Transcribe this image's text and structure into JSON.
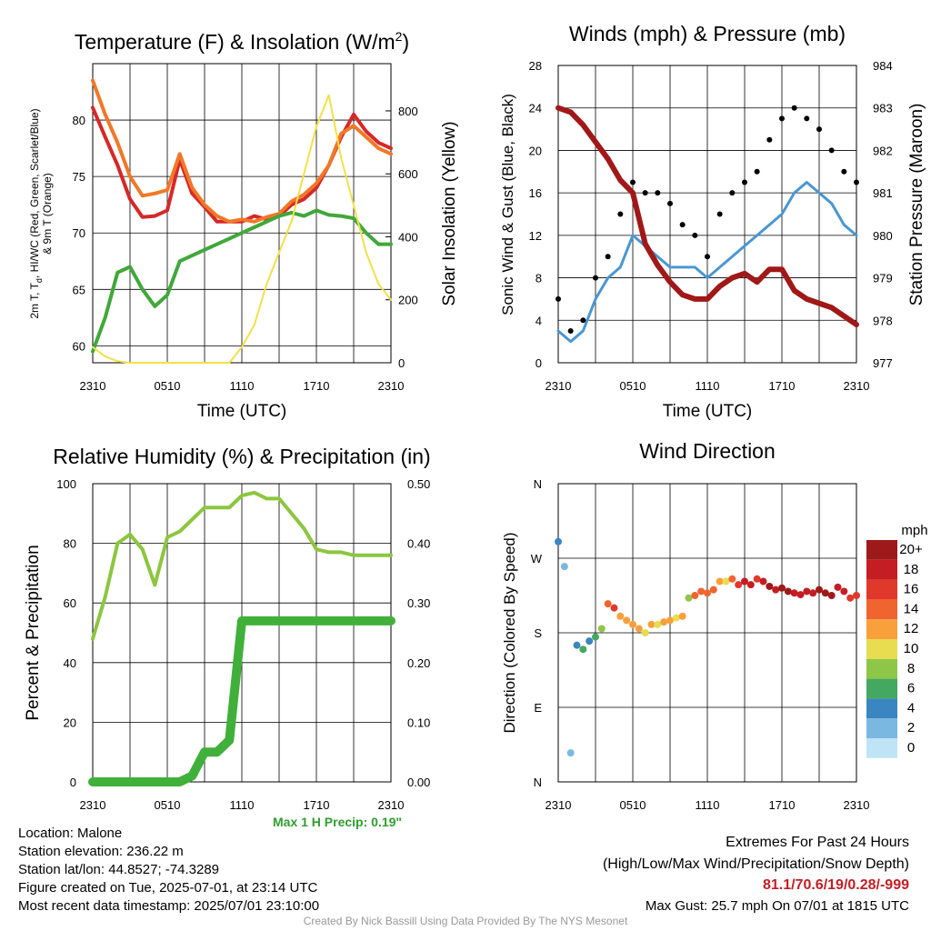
{
  "panels": {
    "temperature": {
      "title_main": "Temperature (F) & Insolation (W/m",
      "title_sup": "2",
      "title_close": ")",
      "ylabel_left_line1": "2m T, T",
      "ylabel_left_sub": "d",
      "ylabel_left_line1b": ", HI/WC (Red, Green, Scarlet/Blue)",
      "ylabel_left_line2": "& 9m T (Orange)",
      "ylabel_right": "Solar Insolation (Yellow)",
      "xlabel": "Time (UTC)"
    },
    "winds": {
      "title": "Winds (mph) & Pressure (mb)",
      "ylabel_left": "Sonic Wind & Gust (Blue, Black)",
      "ylabel_right": "Station Pressure (Maroon)",
      "xlabel": "Time (UTC)"
    },
    "humidity": {
      "title": "Relative Humidity (%) & Precipitation (in)",
      "ylabel_left": "Percent & Precipitation",
      "max_precip": "Max 1 H Precip: 0.19\""
    },
    "direction": {
      "title": "Wind Direction",
      "ylabel_left": "Direction (Colored By Speed)",
      "legend_title": "mph",
      "legend_labels": [
        "20+",
        "18",
        "16",
        "14",
        "12",
        "10",
        "8",
        "6",
        "4",
        "2",
        "0"
      ],
      "legend_colors": [
        "#9e1a1a",
        "#c41e23",
        "#e0382b",
        "#f06430",
        "#f8a03c",
        "#e8dc50",
        "#8ec648",
        "#44a860",
        "#3a86c0",
        "#7ab8e2",
        "#bfe4f6"
      ]
    }
  },
  "footer": {
    "location": "Location: Malone",
    "elevation": "Station elevation: 236.22 m",
    "latlon": "Station lat/lon: 44.8527; -74.3289",
    "created": "Figure created on Tue, 2025-07-01, at 23:14 UTC",
    "recent": "Most recent data timestamp: 2025/07/01 23:10:00",
    "extremes_title": "Extremes For Past 24 Hours",
    "extremes_sub": "(High/Low/Max Wind/Precipitation/Snow Depth)",
    "extremes_values": "81.1/70.6/19/0.28/-999",
    "max_gust": "Max Gust: 25.7 mph On 07/01 at 1815 UTC",
    "credit": "Created By Nick Bassill Using Data Provided By The NYS Mesonet"
  },
  "chart_data": [
    {
      "type": "line",
      "title": "Temperature (F) & Insolation (W/m2)",
      "xlabel": "Time (UTC)",
      "x_ticks": [
        "2310",
        "0510",
        "1110",
        "1710",
        "2310"
      ],
      "x": [
        0,
        1,
        2,
        3,
        4,
        5,
        6,
        7,
        8,
        9,
        10,
        11,
        12,
        13,
        14,
        15,
        16,
        17,
        18,
        19,
        20,
        21,
        22,
        23,
        24
      ],
      "ylim_left": [
        58.5,
        85
      ],
      "ylim_right": [
        0,
        950
      ],
      "yticks_left": [
        60,
        65,
        70,
        75,
        80
      ],
      "yticks_right": [
        0,
        200,
        400,
        600,
        800
      ],
      "series": [
        {
          "name": "2m T (Red)",
          "axis": "left",
          "color": "#d62828",
          "values": [
            81.1,
            78.5,
            76,
            73,
            71.4,
            71.5,
            72,
            76.5,
            73.5,
            72.3,
            71,
            71,
            71,
            71.5,
            71.2,
            71.5,
            72.5,
            73,
            74,
            76,
            78.5,
            80.5,
            79,
            78,
            77.5
          ]
        },
        {
          "name": "9m T (Orange)",
          "axis": "left",
          "color": "#f07828",
          "values": [
            83.5,
            80.5,
            78,
            75,
            73.3,
            73.5,
            73.8,
            77,
            74,
            72.5,
            71.5,
            71,
            71.2,
            71,
            71.4,
            71.7,
            72.8,
            73.4,
            74.4,
            76,
            78.8,
            79.5,
            78.5,
            77.5,
            77
          ]
        },
        {
          "name": "Td (Green)",
          "axis": "left",
          "color": "#40a83a",
          "values": [
            59.5,
            62.5,
            66.5,
            67,
            65,
            63.5,
            64.5,
            67.5,
            68,
            68.5,
            69,
            69.5,
            70,
            70.5,
            71,
            71.5,
            71.8,
            71.5,
            72,
            71.6,
            71.5,
            71.3,
            70,
            69,
            69
          ]
        },
        {
          "name": "Solar Insolation (Yellow)",
          "axis": "right",
          "color": "#f2e04a",
          "values": [
            50,
            20,
            5,
            0,
            0,
            0,
            0,
            0,
            0,
            0,
            0,
            0,
            50,
            120,
            250,
            350,
            450,
            600,
            750,
            850,
            650,
            500,
            350,
            250,
            200
          ]
        }
      ]
    },
    {
      "type": "line",
      "title": "Winds (mph) & Pressure (mb)",
      "xlabel": "Time (UTC)",
      "x_ticks": [
        "2310",
        "0510",
        "1110",
        "1710",
        "2310"
      ],
      "x": [
        0,
        1,
        2,
        3,
        4,
        5,
        6,
        7,
        8,
        9,
        10,
        11,
        12,
        13,
        14,
        15,
        16,
        17,
        18,
        19,
        20,
        21,
        22,
        23,
        24
      ],
      "ylim_left": [
        0,
        28
      ],
      "ylim_right": [
        977,
        984
      ],
      "yticks_left": [
        0,
        4,
        8,
        12,
        16,
        20,
        24,
        28
      ],
      "yticks_right": [
        977,
        978,
        979,
        980,
        981,
        982,
        983,
        984
      ],
      "series": [
        {
          "name": "Sonic Wind (Blue)",
          "axis": "left",
          "color": "#4a96d2",
          "values": [
            3,
            2,
            3,
            6,
            8,
            9,
            12,
            11,
            10,
            9,
            9,
            9,
            8,
            9,
            10,
            11,
            12,
            13,
            14,
            16,
            17,
            16,
            15,
            13,
            12
          ]
        },
        {
          "name": "Gust (Black)",
          "axis": "left",
          "color": "#000000",
          "values": [
            6,
            3,
            4,
            8,
            10,
            14,
            17,
            16,
            16,
            15,
            13,
            12,
            10,
            14,
            16,
            17,
            18,
            21,
            23,
            24,
            23,
            22,
            20,
            18,
            17
          ]
        },
        {
          "name": "Station Pressure (Maroon)",
          "axis": "right",
          "color": "#a01818",
          "values": [
            983,
            982.9,
            982.6,
            982.2,
            981.8,
            981.3,
            981,
            979.8,
            979.3,
            978.9,
            978.6,
            978.5,
            978.5,
            978.8,
            979,
            979.1,
            978.9,
            979.2,
            979.2,
            978.7,
            978.5,
            978.4,
            978.3,
            978.1,
            977.9
          ]
        }
      ]
    },
    {
      "type": "line",
      "title": "Relative Humidity (%) & Precipitation (in)",
      "x_ticks": [
        "2310",
        "0510",
        "1110",
        "1710",
        "2310"
      ],
      "x": [
        0,
        1,
        2,
        3,
        4,
        5,
        6,
        7,
        8,
        9,
        10,
        11,
        12,
        13,
        14,
        15,
        16,
        17,
        18,
        19,
        20,
        21,
        22,
        23,
        24
      ],
      "ylim_left": [
        0,
        100
      ],
      "ylim_right": [
        0,
        0.5
      ],
      "yticks_left": [
        0,
        20,
        40,
        60,
        80,
        100
      ],
      "yticks_right": [
        0.0,
        0.1,
        0.2,
        0.3,
        0.4,
        0.5
      ],
      "series": [
        {
          "name": "Relative Humidity",
          "axis": "left",
          "color": "#8cc63f",
          "values": [
            48,
            62,
            80,
            83,
            78,
            66,
            82,
            84,
            88,
            92,
            92,
            92,
            96,
            97,
            95,
            95,
            90,
            85,
            78,
            77,
            77,
            76,
            76,
            76,
            76
          ]
        },
        {
          "name": "Precipitation",
          "axis": "right",
          "color": "#40b03a",
          "values": [
            0,
            0,
            0,
            0,
            0,
            0,
            0,
            0,
            0.01,
            0.05,
            0.05,
            0.07,
            0.27,
            0.27,
            0.27,
            0.27,
            0.27,
            0.27,
            0.27,
            0.27,
            0.27,
            0.27,
            0.27,
            0.27,
            0.27
          ]
        }
      ]
    },
    {
      "type": "scatter",
      "title": "Wind Direction",
      "x_ticks": [
        "2310",
        "0510",
        "1110",
        "1710",
        "2310"
      ],
      "yticks": [
        "N",
        "E",
        "S",
        "W",
        "N"
      ],
      "ylim": [
        0,
        360
      ],
      "x": [
        0,
        0.5,
        1,
        1.5,
        2,
        2.5,
        3,
        3.5,
        4,
        4.5,
        5,
        5.5,
        6,
        6.5,
        7,
        7.5,
        8,
        8.5,
        9,
        9.5,
        10,
        10.5,
        11,
        11.5,
        12,
        12.5,
        13,
        13.5,
        14,
        14.5,
        15,
        15.5,
        16,
        16.5,
        17,
        17.5,
        18,
        18.5,
        19,
        19.5,
        20,
        20.5,
        21,
        21.5,
        22,
        22.5,
        23,
        23.5,
        24
      ],
      "y": [
        290,
        260,
        35,
        165,
        160,
        170,
        175,
        185,
        215,
        210,
        200,
        195,
        190,
        185,
        180,
        190,
        190,
        193,
        195,
        198,
        200,
        222,
        225,
        230,
        228,
        232,
        242,
        242,
        245,
        238,
        242,
        238,
        245,
        242,
        236,
        232,
        234,
        230,
        228,
        226,
        230,
        228,
        232,
        228,
        225,
        235,
        230,
        222,
        225
      ],
      "speed": [
        3,
        1,
        1,
        4,
        6,
        4,
        5,
        7,
        13,
        16,
        12,
        12,
        11,
        11,
        10,
        11,
        10,
        11,
        12,
        10,
        11,
        7,
        13,
        14,
        14,
        13,
        12,
        10,
        13,
        16,
        17,
        18,
        16,
        18,
        19,
        18,
        20,
        19,
        18,
        18,
        17,
        18,
        19,
        20,
        19,
        18,
        17,
        16,
        16
      ]
    }
  ]
}
